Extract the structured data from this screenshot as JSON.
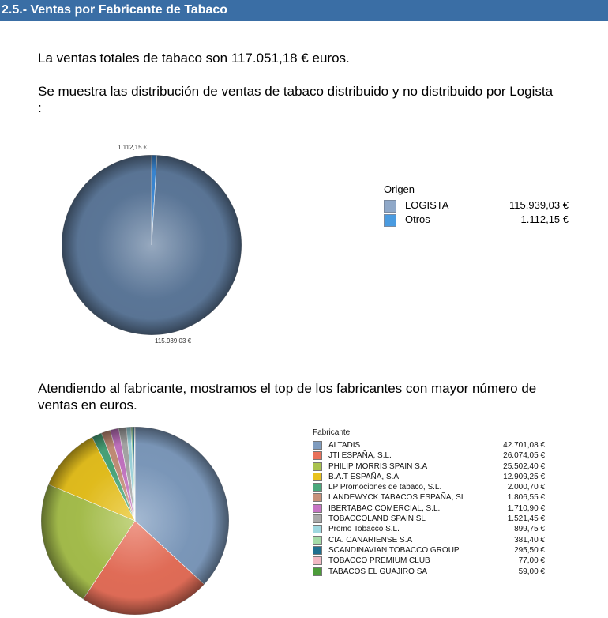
{
  "header": {
    "title": "2.5.- Ventas por Fabricante de Tabaco"
  },
  "text": {
    "p1": "La ventas totales de tabaco son 117.051,18 € euros.",
    "p2": "Se muestra las distribución de ventas de tabaco distribuido y no distribuido por Logista :",
    "p3": "Atendiendo al fabricante, mostramos el top de los fabricantes con mayor número de ventas en euros."
  },
  "chart_data": [
    {
      "type": "pie",
      "legend_title": "Origen",
      "legend_placement": "right",
      "categories": [
        "LOGISTA",
        "Otros"
      ],
      "values": [
        115939.03,
        1112.15
      ],
      "value_labels": [
        "115.939,03 €",
        "1.112,15 €"
      ],
      "data_labels": [
        "115.939,03 €",
        "1.112,15 €"
      ],
      "colors": [
        "#5e7a9c",
        "#3b8ad8"
      ],
      "legend_colors": [
        "#8fa8c8",
        "#4a9be0"
      ]
    },
    {
      "type": "pie",
      "legend_title": "Fabricante",
      "legend_placement": "right",
      "categories": [
        "ALTADIS",
        "JTI ESPAÑA, S.L.",
        "PHILIP MORRIS SPAIN S.A",
        "B.A.T ESPAÑA, S.A.",
        "LP Promociones de tabaco, S.L.",
        "LANDEWYCK TABACOS ESPAÑA, SL",
        "IBERTABAC COMERCIAL, S.L.",
        "TOBACCOLAND SPAIN SL",
        "Promo Tobacco S.L.",
        "CIA. CANARIENSE S.A",
        "SCANDINAVIAN TOBACCO GROUP",
        "TOBACCO PREMIUM CLUB",
        "TABACOS EL GUAJIRO SA"
      ],
      "values": [
        42701.08,
        26074.05,
        25502.4,
        12909.25,
        2000.7,
        1806.55,
        1710.9,
        1521.45,
        899.75,
        381.4,
        295.5,
        77.0,
        59.0
      ],
      "value_labels": [
        "42.701,08 €",
        "26.074,05 €",
        "25.502,40 €",
        "12.909,25 €",
        "2.000,70 €",
        "1.806,55 €",
        "1.710,90 €",
        "1.521,45 €",
        "899,75 €",
        "381,40 €",
        "295,50 €",
        "77,00 €",
        "59,00 €"
      ],
      "colors": [
        "#7f9cbf",
        "#e8705a",
        "#a9c24e",
        "#e8c21e",
        "#4aa87c",
        "#c7917a",
        "#c675c4",
        "#a9a9a9",
        "#9fd8e0",
        "#a4dba8",
        "#1f6f8f",
        "#f2b8c4",
        "#4c9c3a"
      ]
    }
  ]
}
